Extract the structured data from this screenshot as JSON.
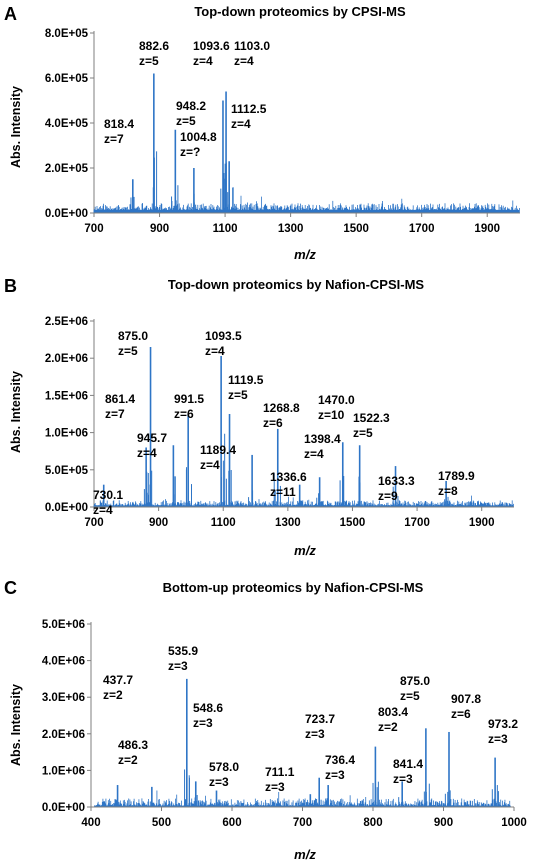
{
  "chart_data": [
    {
      "type": "line",
      "panel": "A",
      "title": "Top-down proteomics by CPSI-MS",
      "xlabel": "m/z",
      "ylabel": "Abs. Intensity",
      "xlim": [
        700,
        2000
      ],
      "ylim": [
        0,
        800000
      ],
      "xticks": [
        "700",
        "900",
        "1100",
        "1300",
        "1500",
        "1700",
        "1900"
      ],
      "xtick_values": [
        700,
        900,
        1100,
        1300,
        1500,
        1700,
        1900
      ],
      "yticks": [
        "0.0E+00",
        "2.0E+05",
        "4.0E+05",
        "6.0E+05",
        "8.0E+05"
      ],
      "ytick_values": [
        0,
        200000,
        400000,
        600000,
        800000
      ],
      "series_color": "#2e75c6",
      "noise": {
        "seed": 11,
        "start": 700,
        "end": 2000,
        "base": 45000,
        "amp": 30000
      },
      "peaks": [
        {
          "x": 818.4,
          "y": 150000
        },
        {
          "x": 882.6,
          "y": 620000
        },
        {
          "x": 948.2,
          "y": 370000
        },
        {
          "x": 1004.8,
          "y": 200000
        },
        {
          "x": 1093.6,
          "y": 500000
        },
        {
          "x": 1103.0,
          "y": 540000
        },
        {
          "x": 1112.5,
          "y": 230000
        }
      ],
      "annotations": [
        {
          "label": "882.6",
          "charge": "z=5"
        },
        {
          "label": "1093.6",
          "charge": "z=4"
        },
        {
          "label": "1103.0",
          "charge": "z=4"
        },
        {
          "label": "948.2",
          "charge": "z=5"
        },
        {
          "label": "818.4",
          "charge": "z=7"
        },
        {
          "label": "1004.8",
          "charge": "z=?"
        },
        {
          "label": "1112.5",
          "charge": "z=4"
        }
      ]
    },
    {
      "type": "line",
      "panel": "B",
      "title": "Top-down proteomics by  Nafion-CPSI-MS",
      "xlabel": "m/z",
      "ylabel": "Abs. Intensity",
      "xlim": [
        700,
        2000
      ],
      "ylim": [
        0,
        2500000
      ],
      "xticks": [
        "700",
        "900",
        "1100",
        "1300",
        "1500",
        "1700",
        "1900"
      ],
      "xtick_values": [
        700,
        900,
        1100,
        1300,
        1500,
        1700,
        1900
      ],
      "yticks": [
        "0.0E+00",
        "5.0E+05",
        "1.0E+06",
        "1.5E+06",
        "2.0E+06",
        "2.5E+06"
      ],
      "ytick_values": [
        0,
        500000,
        1000000,
        1500000,
        2000000,
        2500000
      ],
      "series_color": "#2e75c6",
      "noise": {
        "seed": 23,
        "start": 700,
        "end": 2000,
        "base": 70000,
        "amp": 70000
      },
      "peaks": [
        {
          "x": 730.1,
          "y": 300000
        },
        {
          "x": 861.4,
          "y": 800000
        },
        {
          "x": 875.0,
          "y": 2150000
        },
        {
          "x": 945.7,
          "y": 830000
        },
        {
          "x": 991.5,
          "y": 1250000
        },
        {
          "x": 1093.5,
          "y": 2030000
        },
        {
          "x": 1119.5,
          "y": 1250000
        },
        {
          "x": 1189.4,
          "y": 700000
        },
        {
          "x": 1268.8,
          "y": 1050000
        },
        {
          "x": 1336.6,
          "y": 300000
        },
        {
          "x": 1398.4,
          "y": 400000
        },
        {
          "x": 1470.0,
          "y": 870000
        },
        {
          "x": 1522.3,
          "y": 830000
        },
        {
          "x": 1633.3,
          "y": 550000
        },
        {
          "x": 1789.9,
          "y": 350000
        }
      ],
      "annotations": [
        {
          "label": "875.0",
          "charge": "z=5"
        },
        {
          "label": "1093.5",
          "charge": "z=4"
        },
        {
          "label": "1119.5",
          "charge": "z=5"
        },
        {
          "label": "861.4",
          "charge": "z=7"
        },
        {
          "label": "991.5",
          "charge": "z=6"
        },
        {
          "label": "1268.8",
          "charge": "z=6"
        },
        {
          "label": "1470.0",
          "charge": "z=10"
        },
        {
          "label": "1398.4",
          "charge": "z=4"
        },
        {
          "label": "1522.3",
          "charge": "z=5"
        },
        {
          "label": "945.7",
          "charge": "z=4"
        },
        {
          "label": "1189.4",
          "charge": "z=4"
        },
        {
          "label": "730.1",
          "charge": "z=4"
        },
        {
          "label": "1336.6",
          "charge": "z=11"
        },
        {
          "label": "1633.3",
          "charge": "z=9"
        },
        {
          "label": "1789.9",
          "charge": "z=8"
        }
      ]
    },
    {
      "type": "line",
      "panel": "C",
      "title": "Bottom-up proteomics by Nafion-CPSI-MS",
      "xlabel": "m/z",
      "ylabel": "Abs. Intensity",
      "xlim": [
        400,
        1000
      ],
      "ylim": [
        0,
        5000000
      ],
      "xticks": [
        "400",
        "500",
        "600",
        "700",
        "800",
        "900",
        "1000"
      ],
      "xtick_values": [
        400,
        500,
        600,
        700,
        800,
        900,
        1000
      ],
      "yticks": [
        "0.0E+00",
        "1.0E+06",
        "2.0E+06",
        "3.0E+06",
        "4.0E+06",
        "5.0E+06"
      ],
      "ytick_values": [
        0,
        1000000,
        2000000,
        3000000,
        4000000,
        5000000
      ],
      "series_color": "#2e75c6",
      "noise": {
        "seed": 37,
        "start": 405,
        "end": 995,
        "base": 120000,
        "amp": 200000
      },
      "peaks": [
        {
          "x": 437.7,
          "y": 600000
        },
        {
          "x": 486.3,
          "y": 550000
        },
        {
          "x": 535.9,
          "y": 3500000
        },
        {
          "x": 548.6,
          "y": 700000
        },
        {
          "x": 578.0,
          "y": 450000
        },
        {
          "x": 711.1,
          "y": 350000
        },
        {
          "x": 723.7,
          "y": 800000
        },
        {
          "x": 736.4,
          "y": 600000
        },
        {
          "x": 803.4,
          "y": 1650000
        },
        {
          "x": 841.4,
          "y": 700000
        },
        {
          "x": 875.0,
          "y": 2150000
        },
        {
          "x": 907.8,
          "y": 2050000
        },
        {
          "x": 973.2,
          "y": 1350000
        }
      ],
      "annotations": [
        {
          "label": "535.9",
          "charge": "z=3"
        },
        {
          "label": "437.7",
          "charge": "z=2"
        },
        {
          "label": "548.6",
          "charge": "z=3"
        },
        {
          "label": "486.3",
          "charge": "z=2"
        },
        {
          "label": "578.0",
          "charge": "z=3"
        },
        {
          "label": "723.7",
          "charge": "z=3"
        },
        {
          "label": "711.1",
          "charge": "z=3"
        },
        {
          "label": "736.4",
          "charge": "z=3"
        },
        {
          "label": "803.4",
          "charge": "z=2"
        },
        {
          "label": "841.4",
          "charge": "z=3"
        },
        {
          "label": "875.0",
          "charge": "z=5"
        },
        {
          "label": "907.8",
          "charge": "z=6"
        },
        {
          "label": "973.2",
          "charge": "z=3"
        }
      ]
    }
  ]
}
